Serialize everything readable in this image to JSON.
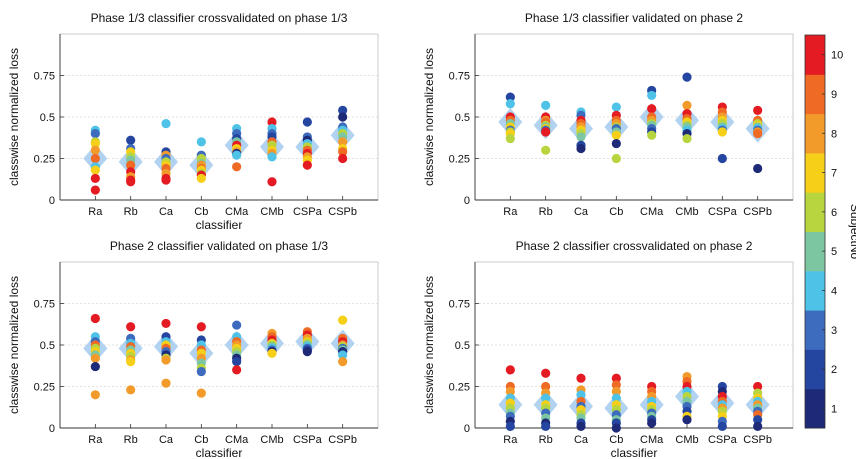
{
  "figure": {
    "colorbar_label": "SubjectNo",
    "colorbar_ticks": [
      "1",
      "2",
      "3",
      "4",
      "5",
      "6",
      "7",
      "8",
      "9",
      "10"
    ],
    "subject_colors": [
      "#1e2a78",
      "#2546a0",
      "#3d6bbd",
      "#4fc2e8",
      "#7cc7a2",
      "#b8d43f",
      "#f6cf18",
      "#f29b2b",
      "#ee6a25",
      "#e41b23"
    ],
    "diamond_color": "#a9cdee",
    "grid": true
  },
  "chart_data": [
    {
      "type": "scatter",
      "title": "Phase 1/3 classifier crossvalidated on phase 1/3",
      "xlabel": "classifier",
      "ylabel": "classwise normalized loss",
      "categories": [
        "Ra",
        "Rb",
        "Ca",
        "Cb",
        "CMa",
        "CMb",
        "CSPa",
        "CSPb"
      ],
      "yticks": [
        "0",
        "0.25",
        "0.5",
        "0.75"
      ],
      "ylim": [
        0,
        1
      ],
      "means": [
        0.25,
        0.23,
        0.23,
        0.21,
        0.33,
        0.32,
        0.32,
        0.39
      ],
      "points": [
        [
          0.42,
          0.4,
          0.35,
          0.34,
          0.3,
          0.25,
          0.2,
          0.18,
          0.13,
          0.06
        ],
        [
          0.36,
          0.31,
          0.29,
          0.26,
          0.24,
          0.21,
          0.17,
          0.14,
          0.12,
          0.11
        ],
        [
          0.46,
          0.29,
          0.27,
          0.25,
          0.23,
          0.21,
          0.19,
          0.16,
          0.13,
          0.12
        ],
        [
          0.35,
          0.27,
          0.25,
          0.22,
          0.21,
          0.19,
          0.18,
          0.16,
          0.15,
          0.13
        ],
        [
          0.43,
          0.4,
          0.37,
          0.35,
          0.33,
          0.31,
          0.29,
          0.28,
          0.27,
          0.2
        ],
        [
          0.47,
          0.43,
          0.4,
          0.38,
          0.35,
          0.33,
          0.3,
          0.28,
          0.26,
          0.11
        ],
        [
          0.47,
          0.38,
          0.36,
          0.34,
          0.32,
          0.3,
          0.28,
          0.26,
          0.24,
          0.21
        ],
        [
          0.54,
          0.5,
          0.44,
          0.42,
          0.4,
          0.38,
          0.35,
          0.31,
          0.29,
          0.25
        ]
      ],
      "point_subjects": [
        [
          4,
          3,
          6,
          7,
          8,
          9,
          4,
          7,
          10,
          10
        ],
        [
          2,
          3,
          7,
          6,
          5,
          9,
          10,
          8,
          10,
          10
        ],
        [
          4,
          2,
          8,
          3,
          6,
          7,
          9,
          8,
          10,
          10
        ],
        [
          4,
          3,
          6,
          5,
          8,
          9,
          7,
          6,
          10,
          7
        ],
        [
          4,
          3,
          2,
          5,
          10,
          7,
          8,
          1,
          4,
          9
        ],
        [
          10,
          4,
          3,
          2,
          9,
          6,
          7,
          8,
          4,
          10
        ],
        [
          2,
          3,
          1,
          4,
          6,
          9,
          10,
          8,
          7,
          10
        ],
        [
          2,
          1,
          3,
          4,
          6,
          5,
          8,
          7,
          9,
          10
        ]
      ]
    },
    {
      "type": "scatter",
      "title": "Phase 1/3 classifier validated on phase 2",
      "xlabel": "",
      "ylabel": "classwise normalized loss",
      "categories": [
        "Ra",
        "Rb",
        "Ca",
        "Cb",
        "CMa",
        "CMb",
        "CSPa",
        "CSPb"
      ],
      "yticks": [
        "0",
        "0.25",
        "0.5",
        "0.75"
      ],
      "ylim": [
        0,
        1
      ],
      "means": [
        0.47,
        0.45,
        0.43,
        0.44,
        0.5,
        0.48,
        0.47,
        0.43
      ],
      "points": [
        [
          0.62,
          0.58,
          0.5,
          0.48,
          0.46,
          0.44,
          0.42,
          0.41,
          0.4,
          0.37
        ],
        [
          0.57,
          0.5,
          0.48,
          0.47,
          0.45,
          0.44,
          0.43,
          0.42,
          0.41,
          0.3
        ],
        [
          0.53,
          0.51,
          0.48,
          0.46,
          0.44,
          0.42,
          0.4,
          0.38,
          0.33,
          0.31
        ],
        [
          0.56,
          0.51,
          0.48,
          0.46,
          0.44,
          0.43,
          0.41,
          0.39,
          0.34,
          0.25
        ],
        [
          0.66,
          0.63,
          0.55,
          0.5,
          0.48,
          0.46,
          0.45,
          0.43,
          0.41,
          0.39
        ],
        [
          0.74,
          0.57,
          0.52,
          0.49,
          0.47,
          0.45,
          0.44,
          0.42,
          0.4,
          0.37
        ],
        [
          0.56,
          0.53,
          0.5,
          0.48,
          0.46,
          0.44,
          0.43,
          0.42,
          0.41,
          0.25
        ],
        [
          0.54,
          0.48,
          0.46,
          0.45,
          0.44,
          0.43,
          0.42,
          0.41,
          0.4,
          0.19
        ]
      ],
      "point_subjects": [
        [
          2,
          4,
          10,
          9,
          5,
          7,
          3,
          6,
          7,
          6
        ],
        [
          4,
          10,
          8,
          9,
          6,
          5,
          7,
          3,
          10,
          6
        ],
        [
          4,
          3,
          10,
          9,
          8,
          7,
          6,
          5,
          2,
          1
        ],
        [
          4,
          10,
          9,
          8,
          6,
          3,
          5,
          7,
          1,
          6
        ],
        [
          2,
          4,
          10,
          9,
          8,
          6,
          5,
          3,
          2,
          6
        ],
        [
          2,
          8,
          10,
          9,
          7,
          6,
          5,
          4,
          1,
          6
        ],
        [
          10,
          9,
          8,
          7,
          6,
          5,
          4,
          3,
          7,
          2
        ],
        [
          10,
          9,
          6,
          7,
          5,
          4,
          3,
          8,
          9,
          1
        ]
      ]
    },
    {
      "type": "scatter",
      "title": "Phase 2 classifier validated on phase 1/3",
      "xlabel": "classifier",
      "ylabel": "classwise normalized loss",
      "categories": [
        "Ra",
        "Rb",
        "Ca",
        "Cb",
        "CMa",
        "CMb",
        "CSPa",
        "CSPb"
      ],
      "yticks": [
        "0",
        "0.25",
        "0.5",
        "0.75"
      ],
      "ylim": [
        0,
        1
      ],
      "means": [
        0.48,
        0.48,
        0.49,
        0.45,
        0.5,
        0.51,
        0.52,
        0.51
      ],
      "points": [
        [
          0.66,
          0.55,
          0.52,
          0.5,
          0.48,
          0.46,
          0.44,
          0.42,
          0.37,
          0.2
        ],
        [
          0.61,
          0.54,
          0.51,
          0.49,
          0.47,
          0.45,
          0.43,
          0.41,
          0.4,
          0.23
        ],
        [
          0.63,
          0.55,
          0.52,
          0.5,
          0.48,
          0.46,
          0.44,
          0.42,
          0.41,
          0.27
        ],
        [
          0.61,
          0.53,
          0.5,
          0.47,
          0.45,
          0.42,
          0.39,
          0.36,
          0.34,
          0.21
        ],
        [
          0.62,
          0.55,
          0.52,
          0.5,
          0.48,
          0.46,
          0.44,
          0.42,
          0.4,
          0.35
        ],
        [
          0.57,
          0.55,
          0.53,
          0.51,
          0.5,
          0.49,
          0.48,
          0.47,
          0.46,
          0.45
        ],
        [
          0.58,
          0.56,
          0.54,
          0.52,
          0.51,
          0.5,
          0.49,
          0.48,
          0.47,
          0.46
        ],
        [
          0.65,
          0.54,
          0.52,
          0.5,
          0.49,
          0.48,
          0.47,
          0.46,
          0.44,
          0.4
        ]
      ],
      "point_subjects": [
        [
          10,
          4,
          3,
          9,
          6,
          7,
          5,
          8,
          1,
          8
        ],
        [
          10,
          3,
          4,
          9,
          5,
          7,
          6,
          8,
          7,
          8
        ],
        [
          10,
          2,
          4,
          7,
          9,
          3,
          1,
          6,
          8,
          8
        ],
        [
          10,
          2,
          4,
          9,
          7,
          8,
          5,
          6,
          3,
          8
        ],
        [
          3,
          4,
          9,
          8,
          7,
          6,
          5,
          1,
          2,
          10
        ],
        [
          8,
          9,
          10,
          7,
          6,
          5,
          4,
          3,
          1,
          7
        ],
        [
          9,
          10,
          8,
          7,
          6,
          5,
          4,
          3,
          2,
          1
        ],
        [
          7,
          9,
          10,
          8,
          6,
          3,
          5,
          1,
          4,
          8
        ]
      ]
    },
    {
      "type": "scatter",
      "title": "Phase 2 classifier crossvalidated on phase 2",
      "xlabel": "classifier",
      "ylabel": "classwise normalized loss",
      "categories": [
        "Ra",
        "Rb",
        "Ca",
        "Cb",
        "CMa",
        "CMb",
        "CSPa",
        "CSPb"
      ],
      "yticks": [
        "0",
        "0.25",
        "0.5",
        "0.75"
      ],
      "ylim": [
        0,
        1
      ],
      "means": [
        0.14,
        0.14,
        0.13,
        0.12,
        0.14,
        0.19,
        0.15,
        0.14
      ],
      "points": [
        [
          0.35,
          0.25,
          0.22,
          0.18,
          0.15,
          0.12,
          0.09,
          0.07,
          0.04,
          0.01
        ],
        [
          0.33,
          0.25,
          0.21,
          0.18,
          0.14,
          0.12,
          0.09,
          0.06,
          0.03,
          0.01
        ],
        [
          0.3,
          0.23,
          0.2,
          0.16,
          0.13,
          0.11,
          0.08,
          0.06,
          0.03,
          0.01
        ],
        [
          0.3,
          0.26,
          0.22,
          0.18,
          0.14,
          0.11,
          0.08,
          0.05,
          0.03,
          0.0
        ],
        [
          0.25,
          0.22,
          0.19,
          0.16,
          0.13,
          0.11,
          0.09,
          0.07,
          0.05,
          0.03
        ],
        [
          0.31,
          0.28,
          0.25,
          0.22,
          0.19,
          0.16,
          0.13,
          0.1,
          0.07,
          0.05
        ],
        [
          0.25,
          0.22,
          0.19,
          0.16,
          0.14,
          0.12,
          0.1,
          0.07,
          0.04,
          0.01
        ],
        [
          0.25,
          0.21,
          0.18,
          0.16,
          0.14,
          0.12,
          0.1,
          0.08,
          0.05,
          0.01
        ]
      ],
      "point_subjects": [
        [
          10,
          9,
          8,
          4,
          7,
          6,
          5,
          3,
          1,
          2
        ],
        [
          10,
          9,
          8,
          4,
          7,
          6,
          3,
          5,
          1,
          2
        ],
        [
          10,
          8,
          4,
          9,
          3,
          7,
          6,
          5,
          2,
          1
        ],
        [
          10,
          9,
          8,
          4,
          7,
          6,
          3,
          5,
          2,
          1
        ],
        [
          10,
          9,
          8,
          4,
          7,
          6,
          3,
          5,
          2,
          1
        ],
        [
          8,
          9,
          10,
          4,
          6,
          5,
          3,
          2,
          7,
          1
        ],
        [
          2,
          1,
          10,
          9,
          4,
          8,
          6,
          7,
          3,
          2
        ],
        [
          10,
          6,
          7,
          4,
          8,
          5,
          3,
          9,
          2,
          1
        ]
      ]
    }
  ]
}
